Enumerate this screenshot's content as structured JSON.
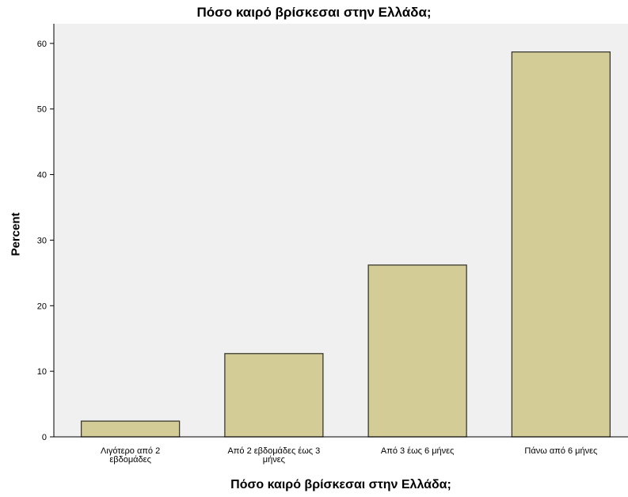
{
  "chart_data": {
    "type": "bar",
    "title": "Πόσο καιρό βρίσκεσαι στην Ελλάδα;",
    "xlabel": "Πόσο καιρό βρίσκεσαι στην Ελλάδα;",
    "ylabel": "Percent",
    "categories": [
      [
        "Λιγότερο από 2",
        "εβδομάδες"
      ],
      [
        "Από 2 εβδομάδες έως 3",
        "μήνες"
      ],
      [
        "Από 3 έως 6 μήνες"
      ],
      [
        "Πάνω από 6 μήνες"
      ]
    ],
    "values": [
      2.4,
      12.7,
      26.2,
      58.7
    ],
    "ylim": [
      0,
      63
    ],
    "yticks": [
      0,
      10,
      20,
      30,
      40,
      50,
      60
    ],
    "grid": false,
    "colors": {
      "bar_fill": "#d4cc96",
      "bar_stroke": "#3a3a30",
      "plot_bg": "#f0f0f0"
    }
  }
}
